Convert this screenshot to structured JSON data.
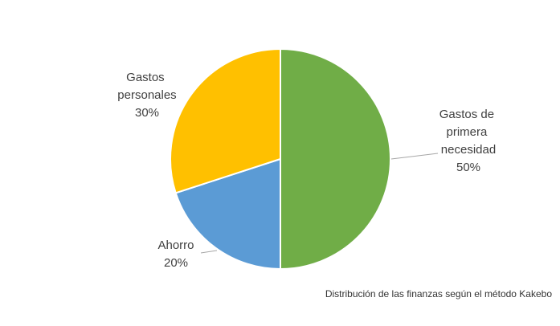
{
  "chart_data": {
    "type": "pie",
    "caption": "Distribución de las finanzas según el método Kakebo",
    "categories": [
      "Gastos de primera necesidad",
      "Ahorro",
      "Gastos personales"
    ],
    "values": [
      50,
      20,
      30
    ],
    "value_labels": [
      "50%",
      "20%",
      "30%"
    ],
    "colors": [
      "#70ad47",
      "#5b9bd5",
      "#ffc000"
    ]
  }
}
